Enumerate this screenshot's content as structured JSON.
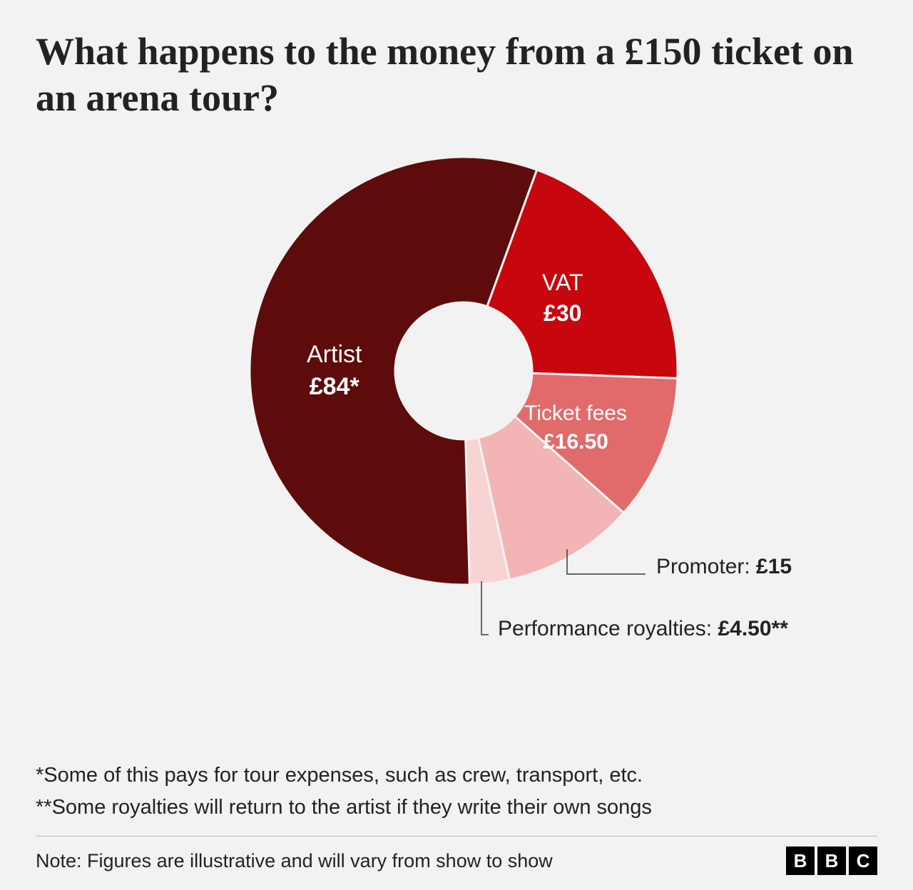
{
  "title": "What happens to the money from a £150 ticket on an arena tour?",
  "chart": {
    "type": "pie",
    "donut": true,
    "inner_radius_ratio": 0.32,
    "outer_radius": 300,
    "stroke_color": "#f2f2f2",
    "stroke_width": 3,
    "background_color": "#f2f2f2",
    "hole_color": "#f2f2f2",
    "start_angle_deg": 20,
    "slices": [
      {
        "key": "vat",
        "label": "VAT",
        "value": 30,
        "display": "£30",
        "color": "#c7060d",
        "label_inside": true
      },
      {
        "key": "fees",
        "label": "Ticket fees",
        "value": 16.5,
        "display": "£16.50",
        "color": "#e16b6b",
        "label_inside": true
      },
      {
        "key": "promoter",
        "label": "Promoter",
        "value": 15,
        "display": "£15",
        "color": "#f2b4b4",
        "label_inside": false
      },
      {
        "key": "royalties",
        "label": "Performance royalties",
        "value": 4.5,
        "display": "£4.50**",
        "color": "#f8d3d3",
        "label_inside": false
      },
      {
        "key": "artist",
        "label": "Artist",
        "value": 84,
        "display": "£84*",
        "color": "#5e0b0c",
        "label_inside": true
      }
    ],
    "inner_label_fontsize": 32,
    "inner_label_color": "#ffffff",
    "outer_label_fontsize": 30,
    "outer_label_color": "#222222",
    "leader_line_color": "#3a3a3a",
    "leader_line_width": 1.5
  },
  "ext_labels": {
    "promoter": {
      "name": "Promoter: ",
      "value": "£15"
    },
    "royalties": {
      "name": "Performance royalties: ",
      "value": "£4.50**"
    }
  },
  "in_labels": {
    "artist": {
      "name": "Artist",
      "value": "£84*"
    },
    "vat": {
      "name": "VAT",
      "value": "£30"
    },
    "fees": {
      "name": "Ticket fees",
      "value": "£16.50"
    }
  },
  "footnotes": {
    "a": " *Some of this pays for tour expenses, such as crew, transport, etc.",
    "b": "**Some royalties will return to the artist if they write their own songs"
  },
  "note": "Note: Figures are illustrative and will vary from show to show",
  "logo": [
    "B",
    "B",
    "C"
  ]
}
